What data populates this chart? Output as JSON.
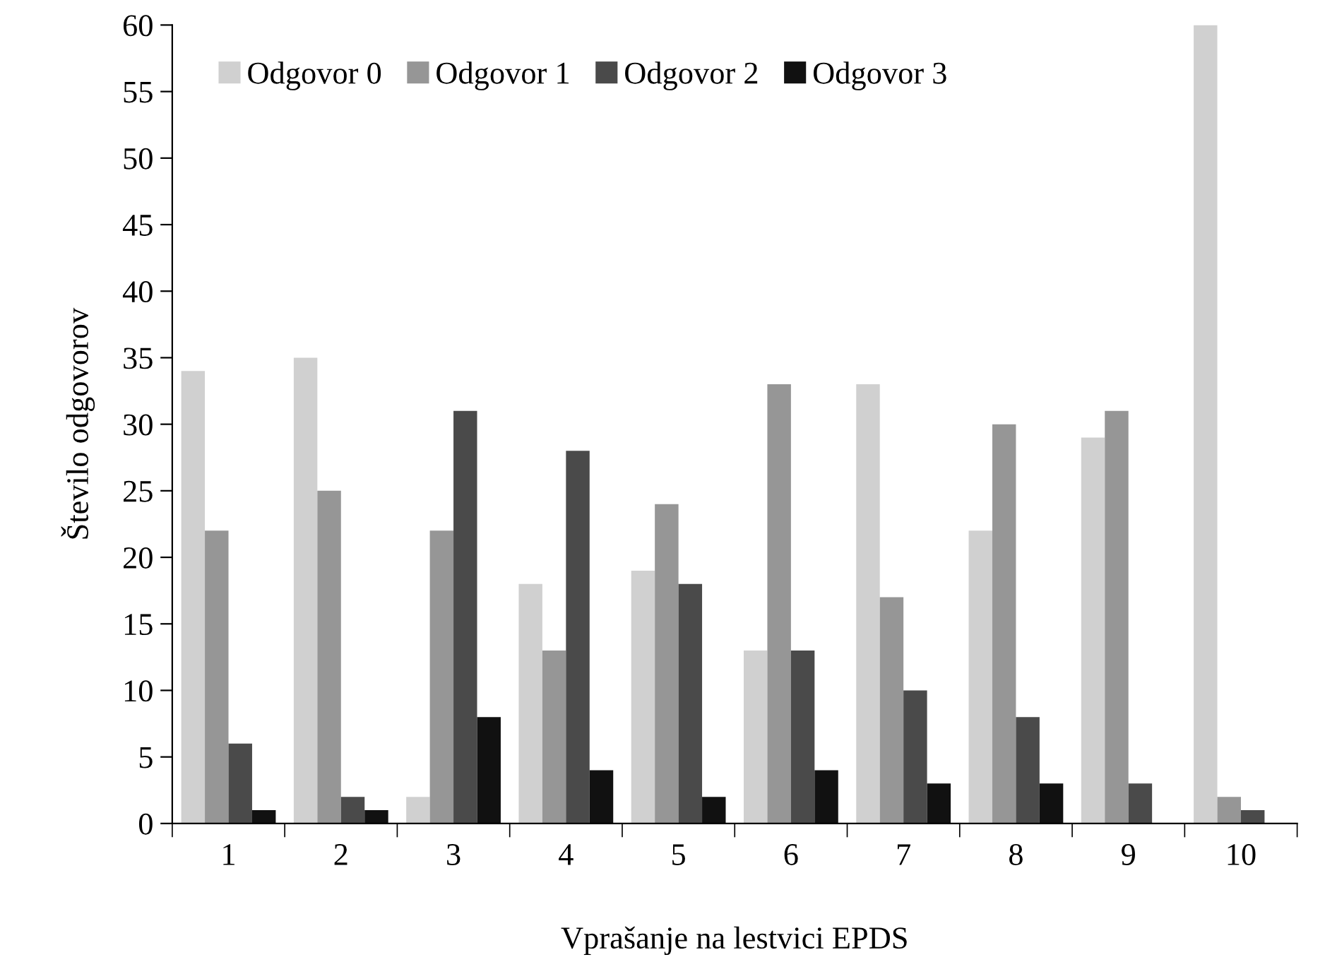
{
  "chart_data": {
    "type": "bar",
    "xlabel": "Vprašanje na lestvici EPDS",
    "ylabel": "Število odgovorov",
    "categories": [
      "1",
      "2",
      "3",
      "4",
      "5",
      "6",
      "7",
      "8",
      "9",
      "10"
    ],
    "series": [
      {
        "name": "Odgovor 0",
        "color": "#d0d0d0",
        "values": [
          34,
          35,
          2,
          18,
          19,
          13,
          33,
          22,
          29,
          60
        ]
      },
      {
        "name": "Odgovor 1",
        "color": "#969696",
        "values": [
          22,
          25,
          22,
          13,
          24,
          33,
          17,
          30,
          31,
          2
        ]
      },
      {
        "name": "Odgovor 2",
        "color": "#4a4a4a",
        "values": [
          6,
          2,
          31,
          28,
          18,
          13,
          10,
          8,
          3,
          1
        ]
      },
      {
        "name": "Odgovor 3",
        "color": "#111111",
        "values": [
          1,
          1,
          8,
          4,
          2,
          4,
          3,
          3,
          0,
          0
        ]
      }
    ],
    "ylim": [
      0,
      60
    ],
    "yticks": [
      0,
      5,
      10,
      15,
      20,
      25,
      30,
      35,
      40,
      45,
      50,
      55,
      60
    ],
    "grid": false,
    "legend": "top left"
  }
}
